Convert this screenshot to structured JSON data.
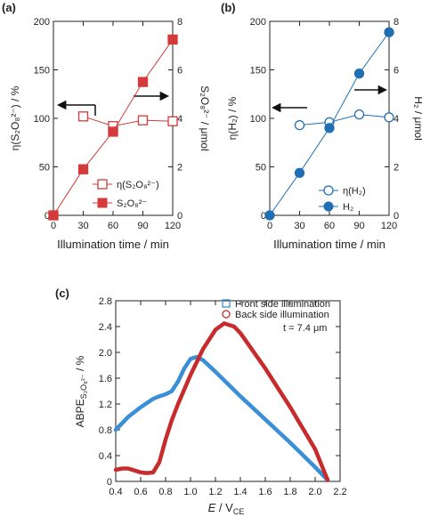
{
  "chart_data": [
    {
      "type": "line",
      "panel": "(a)",
      "xlabel": "Illumination time / min",
      "ylabel": "η(S₂O₈²⁻) / %",
      "y2label": "S₂O₈²⁻ / μmol",
      "x": [
        0,
        30,
        60,
        90,
        120
      ],
      "xlim": [
        0,
        120
      ],
      "xticks": [
        "0",
        "30",
        "60",
        "90",
        "120"
      ],
      "ylim": [
        0,
        200
      ],
      "yticks": [
        "0",
        "50",
        "100",
        "150",
        "200"
      ],
      "y2lim": [
        0,
        8
      ],
      "y2ticks": [
        "0",
        "2",
        "4",
        "6",
        "8"
      ],
      "series": [
        {
          "name": "η(S₂O₈²⁻)",
          "axis": "left",
          "marker": "open-square",
          "x": [
            30,
            60,
            90,
            120
          ],
          "values": [
            102,
            92,
            98,
            97
          ]
        },
        {
          "name": "S₂O₈²⁻",
          "axis": "right",
          "marker": "filled-square",
          "x": [
            0,
            30,
            60,
            90,
            120
          ],
          "values": [
            0,
            1.9,
            3.45,
            5.5,
            7.25
          ]
        }
      ],
      "color": "#d43a3a",
      "legend": "bottom-right",
      "arrows": [
        "left",
        "right"
      ]
    },
    {
      "type": "line",
      "panel": "(b)",
      "xlabel": "Illumination time / min",
      "ylabel": "η(H₂) / %",
      "y2label": "H₂ / μmol",
      "x": [
        0,
        30,
        60,
        90,
        120
      ],
      "xlim": [
        0,
        120
      ],
      "xticks": [
        "0",
        "30",
        "60",
        "90",
        "120"
      ],
      "ylim": [
        0,
        200
      ],
      "yticks": [
        "0",
        "50",
        "100",
        "150",
        "200"
      ],
      "y2lim": [
        0,
        8
      ],
      "y2ticks": [
        "0",
        "2",
        "4",
        "6",
        "8"
      ],
      "series": [
        {
          "name": "η(H₂)",
          "axis": "left",
          "marker": "open-circle",
          "x": [
            30,
            60,
            90,
            120
          ],
          "values": [
            93,
            96,
            104,
            101
          ]
        },
        {
          "name": "H₂",
          "axis": "right",
          "marker": "filled-circle",
          "x": [
            0,
            30,
            60,
            90,
            120
          ],
          "values": [
            0,
            1.75,
            3.6,
            5.85,
            7.55
          ]
        }
      ],
      "color": "#1f6fb4",
      "legend": "bottom-right",
      "arrows": [
        "left",
        "right"
      ]
    },
    {
      "type": "line",
      "panel": "(c)",
      "xlabel_main": "E",
      "xlabel_unit": " / V",
      "xlabel_sub": "CE",
      "ylabel_main": "ABPE",
      "ylabel_sub": "S₂O₈²⁻",
      "ylabel_unit": " / %",
      "xlim": [
        0.4,
        2.2
      ],
      "xticks": [
        "0.4",
        "0.6",
        "0.8",
        "1.0",
        "1.2",
        "1.4",
        "1.6",
        "1.8",
        "2.0",
        "2.2"
      ],
      "ylim": [
        0,
        2.8
      ],
      "yticks": [
        "0",
        "0.4",
        "0.8",
        "1.2",
        "1.6",
        "2.0",
        "2.4",
        "2.8"
      ],
      "note": "t = 7.4 μm",
      "legend": "top-right",
      "series": [
        {
          "name": "Front side illumination",
          "color": "#3a8fd6",
          "marker": "open-square",
          "x": [
            0.4,
            0.5,
            0.6,
            0.7,
            0.75,
            0.8,
            0.85,
            0.9,
            0.95,
            1.0,
            1.05,
            1.1,
            1.2,
            1.4,
            1.6,
            1.8,
            2.0,
            2.1
          ],
          "values": [
            0.8,
            1.0,
            1.15,
            1.28,
            1.32,
            1.35,
            1.4,
            1.55,
            1.75,
            1.9,
            1.93,
            1.88,
            1.7,
            1.32,
            0.96,
            0.6,
            0.22,
            0.02
          ]
        },
        {
          "name": "Back side illumination",
          "color": "#c72b2b",
          "marker": "open-circle",
          "x": [
            0.4,
            0.45,
            0.5,
            0.55,
            0.6,
            0.65,
            0.7,
            0.75,
            0.8,
            0.85,
            0.9,
            1.0,
            1.1,
            1.2,
            1.27,
            1.35,
            1.4,
            1.6,
            1.8,
            2.0,
            2.1
          ],
          "values": [
            0.18,
            0.2,
            0.2,
            0.17,
            0.14,
            0.13,
            0.14,
            0.3,
            0.65,
            0.95,
            1.2,
            1.65,
            2.05,
            2.35,
            2.45,
            2.4,
            2.3,
            1.75,
            1.15,
            0.5,
            0.02
          ]
        }
      ]
    }
  ]
}
